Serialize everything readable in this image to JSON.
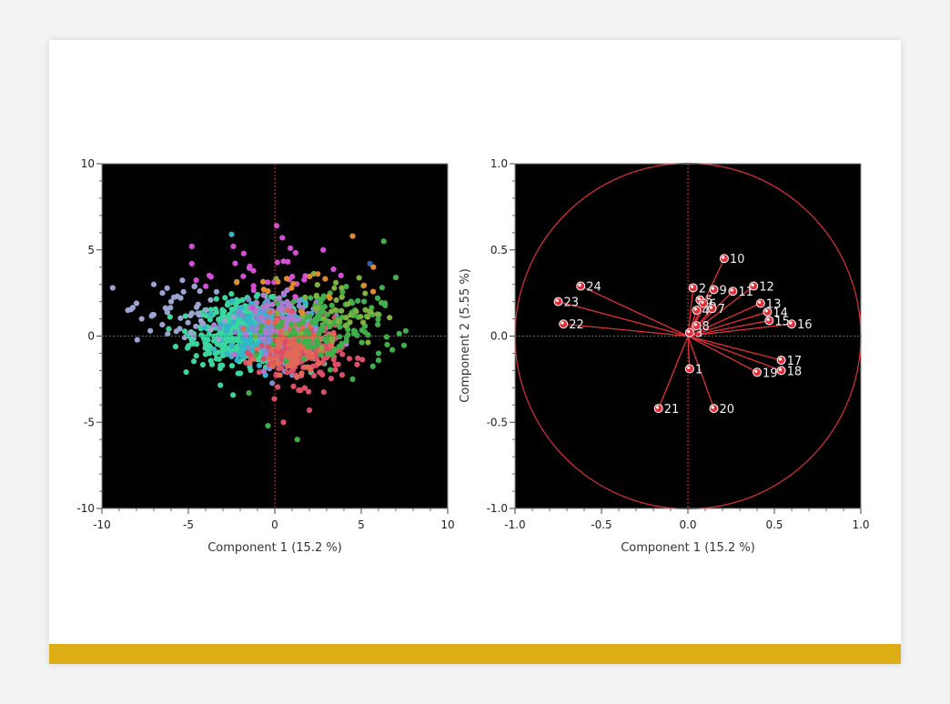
{
  "colors": {
    "plot_background": "#000000",
    "frame": "#888888",
    "reference_line": "#e03030",
    "loading_vector": "#e0303a",
    "accent_bar": "#dcad14"
  },
  "chart_data": [
    {
      "type": "scatter",
      "name": "score-plot",
      "xlabel": "Component 1  (15.2 %)",
      "ylabel": "",
      "xlim": [
        -10,
        10
      ],
      "ylim": [
        -10,
        10
      ],
      "xticks": [
        -10,
        -5,
        0,
        5,
        10
      ],
      "yticks": [
        -10,
        -5,
        0,
        5,
        10
      ],
      "xtick_labels": [
        "-10",
        "-5",
        "0",
        "5",
        "10"
      ],
      "ytick_labels": [
        "-10",
        "-5",
        "0",
        "5",
        "10"
      ],
      "reference_lines": {
        "x": 0,
        "y": 0
      },
      "groups": [
        {
          "color": "#3bd6a0",
          "center": [
            -1.5,
            0.2
          ],
          "spread": [
            1.6,
            0.9
          ],
          "count": 620
        },
        {
          "color": "#31b7c7",
          "center": [
            -0.3,
            0.3
          ],
          "spread": [
            1.3,
            0.9
          ],
          "count": 220
        },
        {
          "color": "#7f8ed3",
          "center": [
            0.4,
            0.1
          ],
          "spread": [
            1.2,
            0.9
          ],
          "count": 180
        },
        {
          "color": "#b07ad0",
          "center": [
            1.0,
            0.5
          ],
          "spread": [
            1.2,
            0.9
          ],
          "count": 110
        },
        {
          "color": "#d95068",
          "center": [
            1.5,
            -1.0
          ],
          "spread": [
            1.2,
            0.9
          ],
          "count": 200
        },
        {
          "color": "#e06a55",
          "center": [
            1.2,
            -0.6
          ],
          "spread": [
            1.0,
            0.8
          ],
          "count": 100
        },
        {
          "color": "#40b04a",
          "center": [
            3.0,
            0.6
          ],
          "spread": [
            1.6,
            1.1
          ],
          "count": 130
        },
        {
          "color": "#9aa4d0",
          "center": [
            -5.5,
            1.2
          ],
          "spread": [
            1.5,
            1.0
          ],
          "count": 45
        },
        {
          "color": "#7fb040",
          "center": [
            3.5,
            1.5
          ],
          "spread": [
            1.4,
            1.0
          ],
          "count": 45
        },
        {
          "color": "#d24fd6",
          "center": [
            -0.5,
            3.8
          ],
          "spread": [
            2.2,
            0.9
          ],
          "count": 28
        },
        {
          "color": "#e08a2e",
          "center": [
            2.5,
            2.8
          ],
          "spread": [
            1.8,
            0.6
          ],
          "count": 16
        }
      ],
      "points": [
        {
          "x": -8.5,
          "y": 1.5,
          "color": "#9aa4d0"
        },
        {
          "x": -8.0,
          "y": 1.9,
          "color": "#9aa4d0"
        },
        {
          "x": -7.7,
          "y": 1.0,
          "color": "#9aa4d0"
        },
        {
          "x": -7.0,
          "y": 3.0,
          "color": "#9aa4d0"
        },
        {
          "x": -6.5,
          "y": 2.5,
          "color": "#9aa4d0"
        },
        {
          "x": -6.0,
          "y": 2.0,
          "color": "#9aa4d0"
        },
        {
          "x": 0.1,
          "y": 6.4,
          "color": "#d24fd6"
        },
        {
          "x": -2.5,
          "y": 5.9,
          "color": "#31b7c7"
        },
        {
          "x": -4.8,
          "y": 5.2,
          "color": "#d24fd6"
        },
        {
          "x": -2.4,
          "y": 5.2,
          "color": "#d24fd6"
        },
        {
          "x": -4.8,
          "y": 4.2,
          "color": "#d24fd6"
        },
        {
          "x": 0.9,
          "y": 5.1,
          "color": "#d24fd6"
        },
        {
          "x": 2.8,
          "y": 5.0,
          "color": "#d24fd6"
        },
        {
          "x": 4.5,
          "y": 5.8,
          "color": "#e08a2e"
        },
        {
          "x": 6.3,
          "y": 5.5,
          "color": "#40b04a"
        },
        {
          "x": 5.5,
          "y": 4.2,
          "color": "#2e5ea8"
        },
        {
          "x": 5.7,
          "y": 4.0,
          "color": "#e08a2e"
        },
        {
          "x": 7.0,
          "y": 3.4,
          "color": "#40b04a"
        },
        {
          "x": 6.5,
          "y": -0.5,
          "color": "#40b04a"
        },
        {
          "x": 6.8,
          "y": -0.8,
          "color": "#40b04a"
        },
        {
          "x": 6.0,
          "y": -1.0,
          "color": "#40b04a"
        },
        {
          "x": 4.5,
          "y": -2.5,
          "color": "#40b04a"
        },
        {
          "x": 1.3,
          "y": -6.0,
          "color": "#40b04a"
        },
        {
          "x": -0.4,
          "y": -5.2,
          "color": "#40b04a"
        },
        {
          "x": 0.5,
          "y": -5.0,
          "color": "#d95068"
        },
        {
          "x": -1.5,
          "y": -3.3,
          "color": "#40b04a"
        },
        {
          "x": 2.0,
          "y": -4.3,
          "color": "#d95068"
        }
      ]
    },
    {
      "type": "scatter",
      "name": "loading-plot",
      "xlabel": "Component 1  (15.2 %)",
      "ylabel": "Component 2  (5.55 %)",
      "xlim": [
        -1.0,
        1.0
      ],
      "ylim": [
        -1.0,
        1.0
      ],
      "xticks": [
        -1.0,
        -0.5,
        0.0,
        0.5,
        1.0
      ],
      "yticks": [
        -1.0,
        -0.5,
        0.0,
        0.5,
        1.0
      ],
      "xtick_labels": [
        "-1.0",
        "-0.5",
        "0.0",
        "0.5",
        "1.0"
      ],
      "ytick_labels": [
        "-1.0",
        "-0.5",
        "0.0",
        "0.5",
        "1.0"
      ],
      "reference_lines": {
        "x": 0,
        "y": 0
      },
      "unit_circle": true,
      "vectors": [
        {
          "label": "1",
          "x": 0.01,
          "y": -0.19
        },
        {
          "label": "2",
          "x": 0.03,
          "y": 0.28
        },
        {
          "label": "3",
          "x": 0.01,
          "y": 0.02
        },
        {
          "label": "4",
          "x": 0.05,
          "y": 0.15
        },
        {
          "label": "5",
          "x": 0.07,
          "y": 0.21
        },
        {
          "label": "6",
          "x": 0.09,
          "y": 0.19
        },
        {
          "label": "7",
          "x": 0.14,
          "y": 0.16
        },
        {
          "label": "8",
          "x": 0.05,
          "y": 0.06
        },
        {
          "label": "9",
          "x": 0.15,
          "y": 0.27
        },
        {
          "label": "10",
          "x": 0.21,
          "y": 0.45
        },
        {
          "label": "11",
          "x": 0.26,
          "y": 0.26
        },
        {
          "label": "12",
          "x": 0.38,
          "y": 0.29
        },
        {
          "label": "13",
          "x": 0.42,
          "y": 0.19
        },
        {
          "label": "14",
          "x": 0.46,
          "y": 0.14
        },
        {
          "label": "15",
          "x": 0.47,
          "y": 0.09
        },
        {
          "label": "16",
          "x": 0.6,
          "y": 0.07
        },
        {
          "label": "17",
          "x": 0.54,
          "y": -0.14
        },
        {
          "label": "18",
          "x": 0.54,
          "y": -0.2
        },
        {
          "label": "19",
          "x": 0.4,
          "y": -0.21
        },
        {
          "label": "20",
          "x": 0.15,
          "y": -0.42
        },
        {
          "label": "21",
          "x": -0.17,
          "y": -0.42
        },
        {
          "label": "22",
          "x": -0.72,
          "y": 0.07
        },
        {
          "label": "23",
          "x": -0.75,
          "y": 0.2
        },
        {
          "label": "24",
          "x": -0.62,
          "y": 0.29
        }
      ]
    }
  ]
}
